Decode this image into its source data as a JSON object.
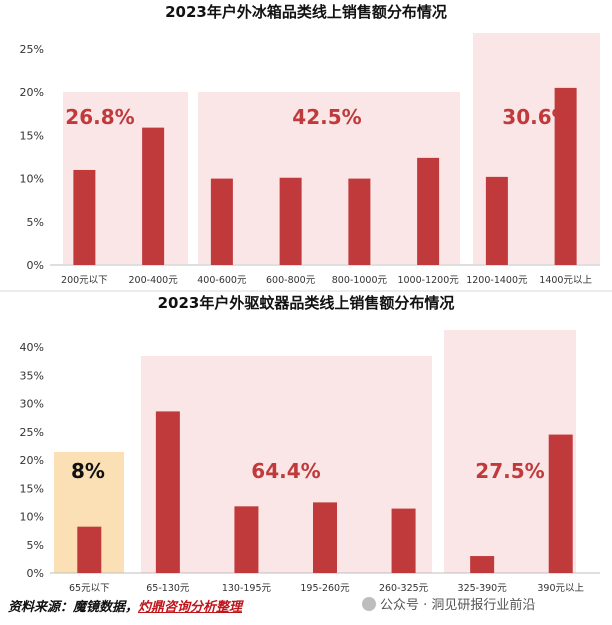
{
  "chart_data": [
    {
      "type": "bar",
      "title": "2023年户外冰箱品类线上销售额分布情况",
      "ylim": [
        0,
        25
      ],
      "yticks": [
        "0%",
        "5%",
        "10%",
        "15%",
        "20%",
        "25%"
      ],
      "categories": [
        "200元以下",
        "200-400元",
        "400-600元",
        "600-800元",
        "800-1000元",
        "1000-1200元",
        "1200-1400元",
        "1400元以上"
      ],
      "values": [
        11.0,
        15.9,
        10.0,
        10.1,
        10.0,
        12.4,
        10.2,
        20.5
      ],
      "groups": [
        {
          "label": "26.8%",
          "start": 0,
          "end": 1,
          "color": "#fbe6e7",
          "label_color": "#c0393b"
        },
        {
          "label": "42.5%",
          "start": 2,
          "end": 5,
          "color": "#fbe6e7",
          "label_color": "#c0393b"
        },
        {
          "label": "30.6%",
          "start": 6,
          "end": 7,
          "color": "#fbe6e7",
          "label_color": "#c0393b"
        }
      ],
      "bar_color": "#c0393b"
    },
    {
      "type": "bar",
      "title": "2023年户外驱蚊器品类线上销售额分布情况",
      "ylim": [
        0,
        40
      ],
      "yticks": [
        "0%",
        "5%",
        "10%",
        "15%",
        "20%",
        "25%",
        "30%",
        "35%",
        "40%"
      ],
      "categories": [
        "65元以下",
        "65-130元",
        "130-195元",
        "195-260元",
        "260-325元",
        "325-390元",
        "390元以上"
      ],
      "values": [
        8.2,
        28.6,
        11.8,
        12.5,
        11.4,
        3.0,
        24.5
      ],
      "groups": [
        {
          "label": "8%",
          "start": 0,
          "end": 0,
          "color": "#fbe0b5",
          "label_color": "#111111"
        },
        {
          "label": "64.4%",
          "start": 1,
          "end": 4,
          "color": "#fbe6e7",
          "label_color": "#c0393b"
        },
        {
          "label": "27.5%",
          "start": 5,
          "end": 6,
          "color": "#fbe6e7",
          "label_color": "#c0393b"
        }
      ],
      "bar_color": "#c0393b"
    }
  ],
  "footer": {
    "source_prefix": "资料来源：魔镜数据，",
    "source_link": "灼鼎咨询分析整理"
  },
  "watermark": "公众号 · 洞见研报行业前沿"
}
